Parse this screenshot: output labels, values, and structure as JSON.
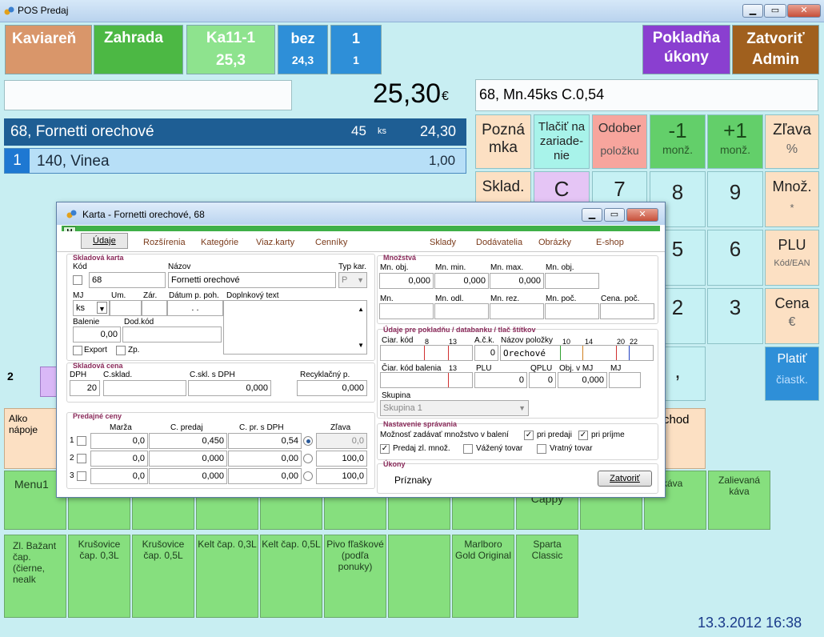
{
  "window": {
    "title": "POS Predaj"
  },
  "tiles": {
    "kaviaren": "Kaviareň",
    "zahrada": "Zahrada",
    "table_name": "Ka11-1",
    "table_value": "25,3",
    "bez": "bez",
    "bez_value": "24,3",
    "count_top": "1",
    "count_bottom": "1",
    "pokladna": "Pokladňa úkony",
    "zatvorit": "Zatvoriť",
    "admin": "Admin"
  },
  "total": {
    "amount": "25,30",
    "currency": "€"
  },
  "info": "68,  Mn.45ks C.0,54",
  "items": [
    {
      "text": "68, Fornetti orechové",
      "qty": "45",
      "unit": "ks",
      "price": "24,30"
    },
    {
      "index": "1",
      "text": "140, Vinea",
      "price": "1,00"
    }
  ],
  "actions": {
    "poznamka": "Pozná mka",
    "tlacit": "Tlačiť na zariade- nie",
    "odober": "Odober",
    "odober_sub": "položku",
    "minus": "-1",
    "minus_sub": "monž.",
    "plus": "+1",
    "plus_sub": "monž.",
    "zlava": "Zľava",
    "zlava_sub": "%",
    "sklad": "Sklad.",
    "c": "C",
    "mnoz": "Množ.",
    "mnoz_sub": "*",
    "plu": "PLU",
    "plu_sub": "Kód/EAN",
    "cena": "Cena",
    "cena_sub": "€",
    "platit": "Platiť",
    "platit_sub": "čiastk."
  },
  "keypad": {
    "k7": "7",
    "k8": "8",
    "k9": "9",
    "k5": "5",
    "k6": "6",
    "k2": "2",
    "k3": "3",
    "comma": ","
  },
  "side": {
    "num2": "2",
    "alko": "Alko nápoje",
    "obchod": "chod"
  },
  "menu_row": [
    "Menu1",
    "",
    "",
    "",
    "",
    "",
    "",
    "Cappy",
    "so káva",
    "Zalievaná káva"
  ],
  "bottom_row": [
    "Zl. Bažant čap. (čierne, nealk",
    "Krušovice čap. 0,3L",
    "Krušovice čap. 0,5L",
    "Kelt čap. 0,3L",
    "Kelt čap. 0,5L",
    "Pivo fľaškové (podľa ponuky)",
    "",
    "Marlboro Gold Original",
    "Sparta Classic"
  ],
  "datetime": "13.3.2012 16:38",
  "dialog": {
    "title": "Karta - Fornetti orechové, 68",
    "h": "H",
    "tabs": [
      "Údaje",
      "Rozšírenia",
      "Kategórie",
      "Viaz.karty",
      "Cenníky",
      "Sklady",
      "Dodávatelia",
      "Obrázky",
      "E-shop"
    ],
    "skladova_karta": "Skladová karta",
    "kod_lbl": "Kód",
    "kod": "68",
    "nazov_lbl": "Názov",
    "nazov": "Fornetti orechové",
    "typ_lbl": "Typ kar.",
    "typ": "P",
    "mj_lbl": "MJ",
    "mj": "ks",
    "um_lbl": "Um.",
    "zar_lbl": "Zár.",
    "datum_lbl": "Dátum p. poh.",
    "datum": ". .",
    "dopl_lbl": "Doplnkový text",
    "balenie_lbl": "Balenie",
    "balenie": "0,00",
    "dodkod_lbl": "Dod.kód",
    "export": "Export",
    "zp": "Zp.",
    "skladova_cena": "Skladová cena",
    "dph_lbl": "DPH",
    "dph": "20",
    "csklad_lbl": "C.sklad.",
    "csklsdph_lbl": "C.skl. s DPH",
    "csklsdph": "0,000",
    "recykl_lbl": "Recyklačný p.",
    "recykl": "0,000",
    "predajne_ceny": "Predajné ceny",
    "pc_heads": [
      "Marža",
      "C. predaj",
      "C. pr. s DPH",
      "Zľava"
    ],
    "pc_rows": [
      {
        "n": "1",
        "marza": "0,0",
        "predaj": "0,450",
        "sdph": "0,54",
        "zlava": "0,0"
      },
      {
        "n": "2",
        "marza": "0,0",
        "predaj": "0,000",
        "sdph": "0,00",
        "zlava": "100,0"
      },
      {
        "n": "3",
        "marza": "0,0",
        "predaj": "0,000",
        "sdph": "0,00",
        "zlava": "100,0"
      }
    ],
    "mnozstva": "Množstvá",
    "mn_heads1": [
      "Mn. obj.",
      "Mn. min.",
      "Mn. max.",
      "Mn. obj."
    ],
    "mn_vals1": [
      "0,000",
      "0,000",
      "0,000",
      ""
    ],
    "mn_heads2": [
      "Mn.",
      "Mn. odl.",
      "Mn. rez.",
      "Mn. poč.",
      "Cena. poč."
    ],
    "udaje_pokl": "Údaje pre pokladňu / databanku / tlač štítkov",
    "ciar_lbl": "Ciar. kód",
    "ack_lbl": "A.č.k.",
    "ack": "0",
    "nazov_pol_lbl": "Názov položky",
    "nazov_pol": "Orechové",
    "ruler1": [
      "8",
      "13"
    ],
    "ruler2": [
      "10",
      "14",
      "20",
      "22"
    ],
    "ciar_bal_lbl": "Čiar. kód balenia",
    "ruler3": "13",
    "plu_lbl": "PLU",
    "plu": "0",
    "qplu_lbl": "QPLU",
    "qplu": "0",
    "objmj_lbl": "Obj. v MJ",
    "objmj": "0,000",
    "mj2_lbl": "MJ",
    "skupina_lbl": "Skupina",
    "skupina": "Skupina 1",
    "nastavenie": "Nastavenie správania",
    "moznost": "Možnosť zadávať množstvo v balení",
    "pri_predaji": "pri predaji",
    "pri_prijme": "pri príjme",
    "predaj_zl": "Predaj zl. množ.",
    "vazeny": "Vážený tovar",
    "vratny": "Vratný tovar",
    "ukony": "Úkony",
    "priznaky": "Príznaky",
    "zatvorit": "Zatvoriť"
  }
}
